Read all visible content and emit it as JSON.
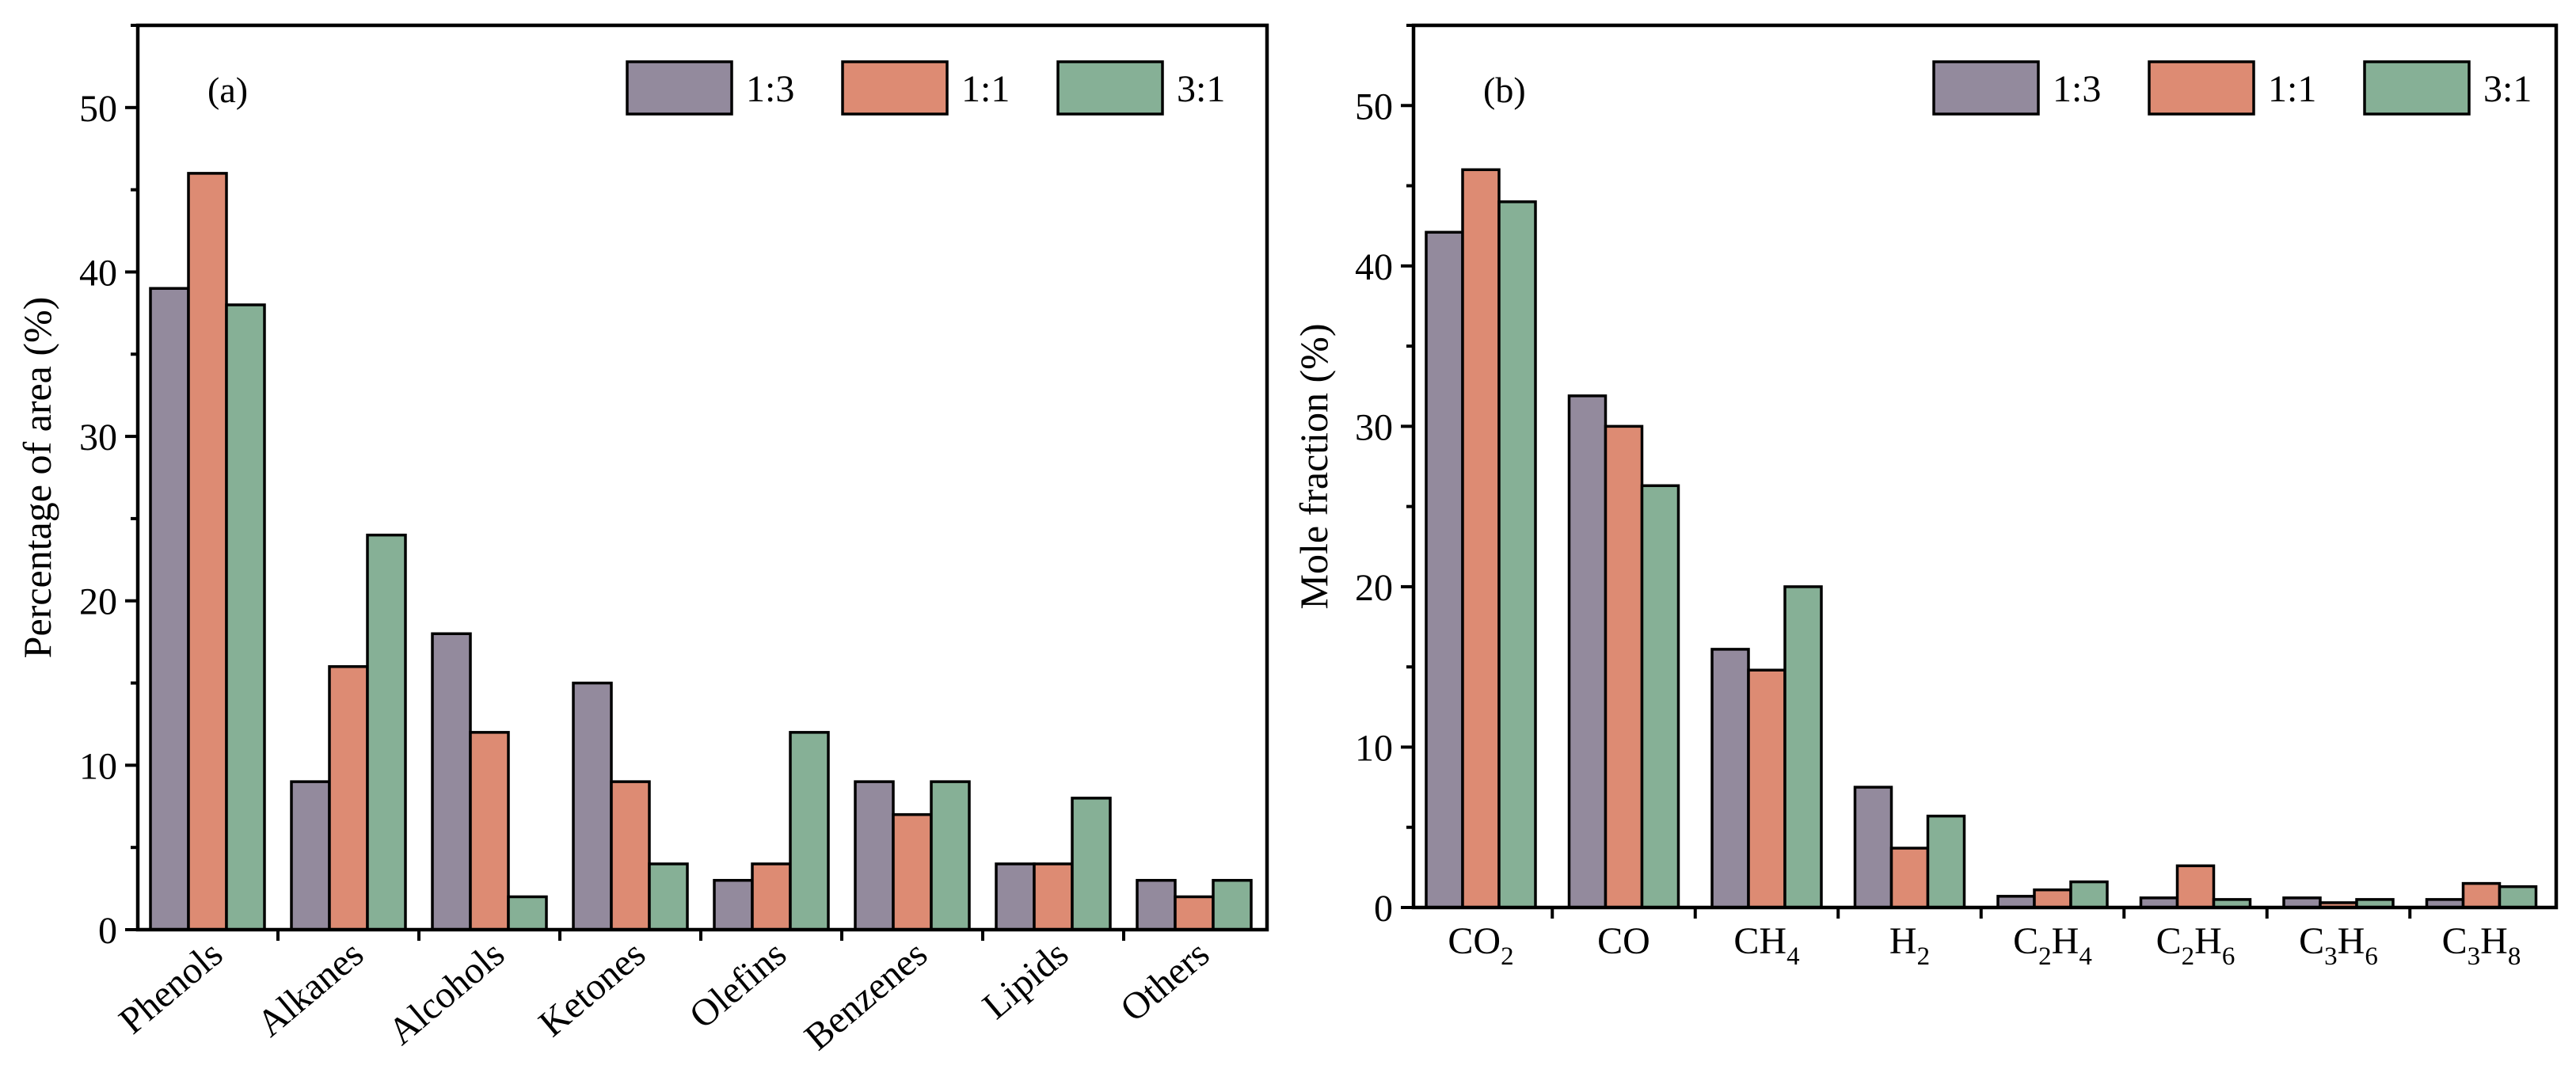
{
  "chart_data": [
    {
      "type": "bar",
      "panel_label": "(a)",
      "ylabel": "Percentage of area (%)",
      "xlabel": "",
      "ylim": [
        0,
        55
      ],
      "yticks": [
        0,
        10,
        20,
        30,
        40,
        50
      ],
      "categories": [
        "Phenols",
        "Alkanes",
        "Alcohols",
        "Ketones",
        "Olefins",
        "Benzenes",
        "Lipids",
        "Others"
      ],
      "series": [
        {
          "name": "1:3",
          "color": "#938a9d",
          "values": [
            39,
            9,
            18,
            15,
            3,
            9,
            4,
            3
          ]
        },
        {
          "name": "1:1",
          "color": "#dd8b73",
          "values": [
            46,
            16,
            12,
            9,
            4,
            7,
            4,
            2
          ]
        },
        {
          "name": "3:1",
          "color": "#86b096",
          "values": [
            38,
            24,
            2,
            4,
            12,
            9,
            8,
            3
          ]
        }
      ],
      "legend": "top-right"
    },
    {
      "type": "bar",
      "panel_label": "(b)",
      "ylabel": "Mole fraction (%)",
      "xlabel": "",
      "ylim": [
        0,
        55
      ],
      "yticks": [
        0,
        10,
        20,
        30,
        40,
        50
      ],
      "categories": [
        {
          "base": "CO",
          "sub": "2",
          "tail": ""
        },
        {
          "base": "CO",
          "sub": "",
          "tail": ""
        },
        {
          "base": "CH",
          "sub": "4",
          "tail": ""
        },
        {
          "base": "H",
          "sub": "2",
          "tail": ""
        },
        {
          "base": "C",
          "sub": "2",
          "tail": "H",
          "sub2": "4"
        },
        {
          "base": "C",
          "sub": "2",
          "tail": "H",
          "sub2": "6"
        },
        {
          "base": "C",
          "sub": "3",
          "tail": "H",
          "sub2": "6"
        },
        {
          "base": "C",
          "sub": "3",
          "tail": "H",
          "sub2": "8"
        }
      ],
      "series": [
        {
          "name": "1:3",
          "color": "#938a9d",
          "values": [
            42.1,
            31.9,
            16.1,
            7.5,
            0.7,
            0.6,
            0.6,
            0.5
          ]
        },
        {
          "name": "1:1",
          "color": "#dd8b73",
          "values": [
            46.0,
            30.0,
            14.8,
            3.7,
            1.1,
            2.6,
            0.3,
            1.5
          ]
        },
        {
          "name": "3:1",
          "color": "#86b096",
          "values": [
            44.0,
            26.3,
            20.0,
            5.7,
            1.6,
            0.5,
            0.5,
            1.3
          ]
        }
      ],
      "legend": "top-right"
    }
  ]
}
